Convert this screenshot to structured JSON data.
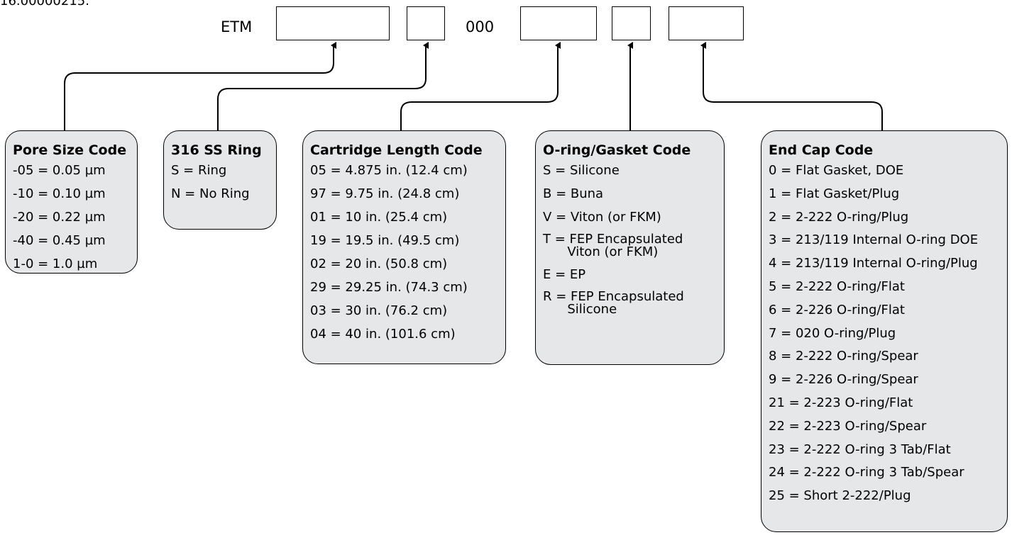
{
  "top_cut_text": "16.00000215.",
  "part_number": {
    "prefix": "ETM",
    "fixed_segment": "000"
  },
  "panels": {
    "pore_size": {
      "title": "Pore Size Code",
      "items": [
        "-05 = 0.05 µm",
        "-10 = 0.10 µm",
        "-20 = 0.22 µm",
        "-40 = 0.45 µm",
        "1-0 = 1.0 µm"
      ]
    },
    "ring": {
      "title": "316 SS Ring",
      "items": [
        "S = Ring",
        "N = No Ring"
      ]
    },
    "cartridge_length": {
      "title": "Cartridge Length Code",
      "items": [
        "05 = 4.875 in. (12.4 cm)",
        "97 = 9.75 in. (24.8 cm)",
        "01 = 10 in. (25.4 cm)",
        "19 = 19.5 in. (49.5 cm)",
        "02 = 20 in. (50.8 cm)",
        "29 = 29.25 in. (74.3 cm)",
        "03 = 30 in. (76.2 cm)",
        "04 = 40 in. (101.6 cm)"
      ]
    },
    "oring_gasket": {
      "title": "O-ring/Gasket Code",
      "items": [
        "S = Silicone",
        "B = Buna",
        "V = Viton (or FKM)",
        "T = FEP Encapsulated\n      Viton (or FKM)",
        "E = EP",
        "R = FEP Encapsulated\n      Silicone"
      ]
    },
    "end_cap": {
      "title": "End Cap Code",
      "items": [
        "0 = Flat Gasket, DOE",
        "1 = Flat Gasket/Plug",
        "2 = 2-222 O-ring/Plug",
        "3 = 213/119 Internal O-ring DOE",
        "4 = 213/119 Internal O-ring/Plug",
        "5 = 2-222 O-ring/Flat",
        "6 = 2-226 O-ring/Flat",
        "7 = 020 O-ring/Plug",
        "8 = 2-222 O-ring/Spear",
        "9 = 2-226 O-ring/Spear",
        "21 = 2-223 O-ring/Flat",
        "22 = 2-223 O-ring/Spear",
        "23 = 2-222 O-ring 3 Tab/Flat",
        "24 = 2-222 O-ring 3 Tab/Spear",
        "25 = Short 2-222/Plug"
      ]
    }
  }
}
